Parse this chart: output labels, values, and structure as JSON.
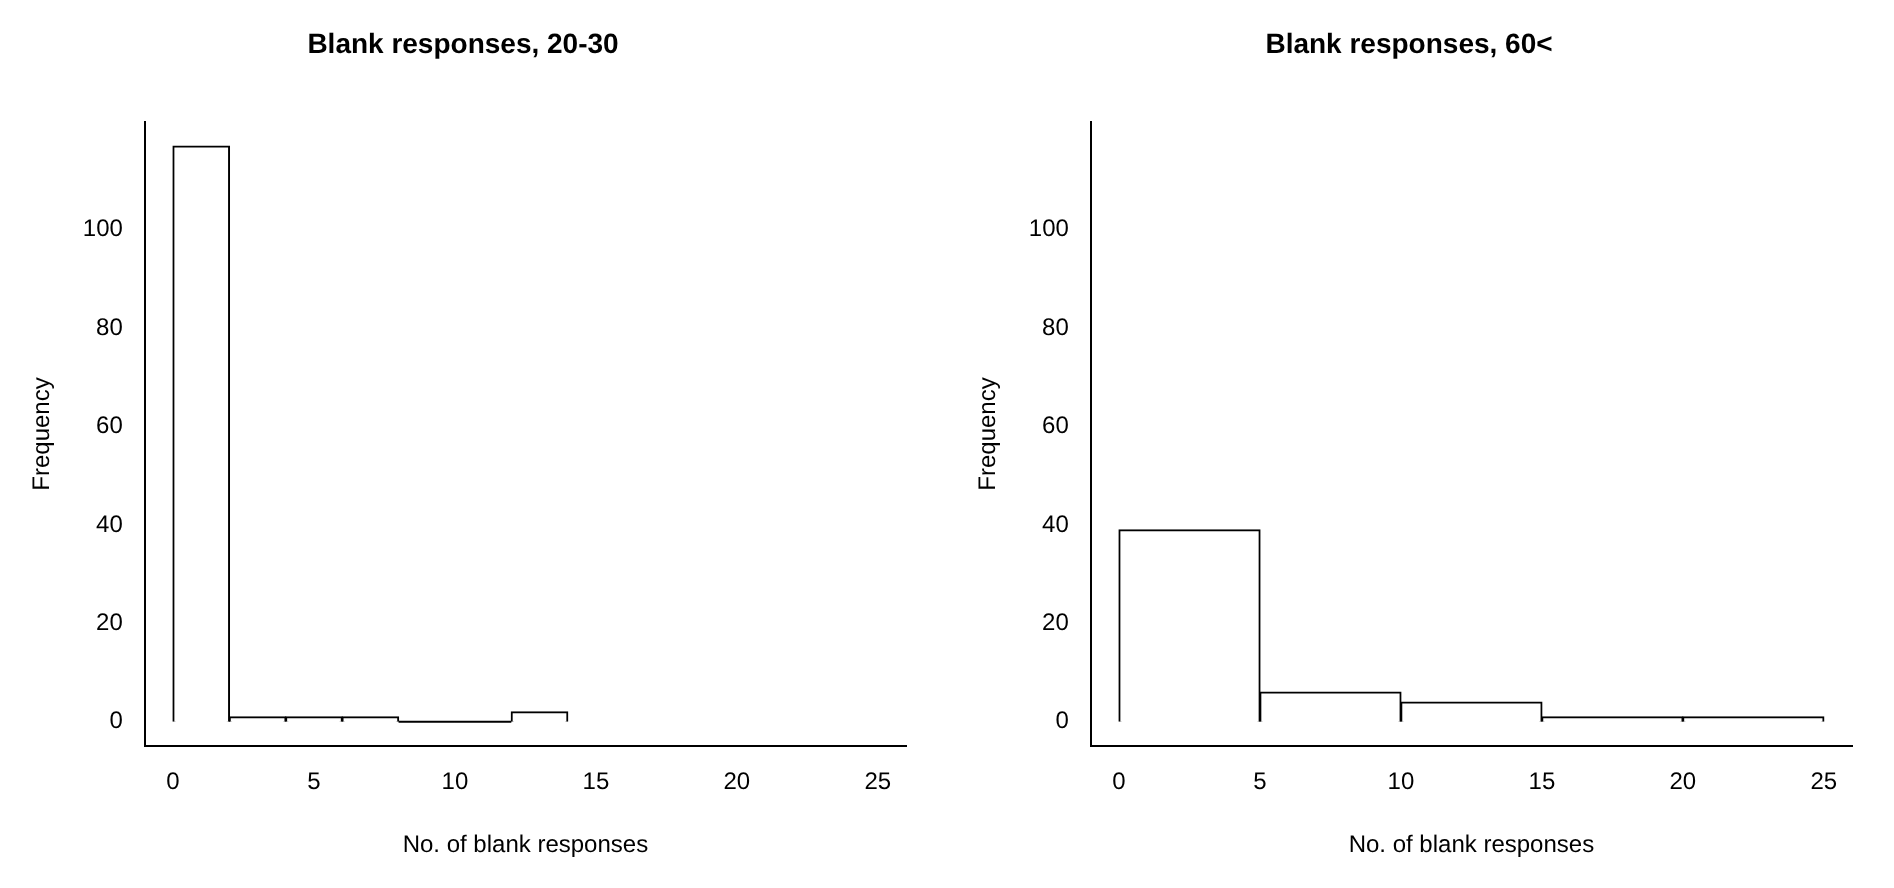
{
  "chart_data": [
    {
      "type": "histogram",
      "title": "Blank responses, 20-30",
      "xlabel": "No. of blank responses",
      "ylabel": "Frequency",
      "bins": [
        0,
        2,
        4,
        6,
        8,
        10,
        12,
        14
      ],
      "values": [
        117,
        1,
        1,
        1,
        0,
        0,
        2
      ],
      "color": "#ffffff",
      "xlim": [
        -1,
        26
      ],
      "xticks": [
        0,
        5,
        10,
        15,
        20,
        25
      ],
      "ylim": [
        -5,
        122
      ],
      "yticks": [
        0,
        20,
        40,
        60,
        80,
        100
      ],
      "grid": false,
      "legend": false
    },
    {
      "type": "histogram",
      "title": "Blank responses, 60<",
      "xlabel": "No. of blank responses",
      "ylabel": "Frequency",
      "bins": [
        0,
        5,
        10,
        15,
        20,
        25
      ],
      "values": [
        39,
        6,
        4,
        1,
        1
      ],
      "color": "#ffffff",
      "xlim": [
        -1,
        26
      ],
      "xticks": [
        0,
        5,
        10,
        15,
        20,
        25
      ],
      "ylim": [
        -5,
        122
      ],
      "yticks": [
        0,
        20,
        40,
        60,
        80,
        100
      ],
      "grid": false,
      "legend": false
    }
  ]
}
